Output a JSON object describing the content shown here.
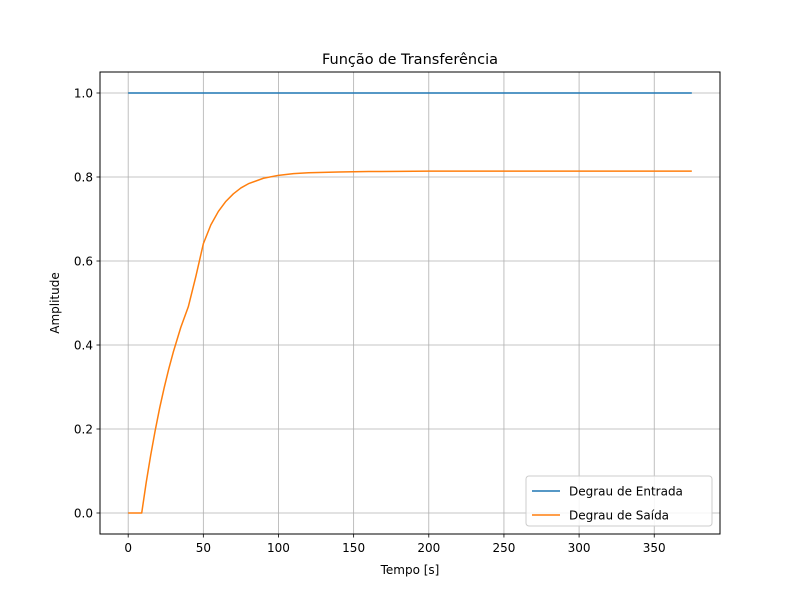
{
  "chart_data": {
    "type": "line",
    "title": "Função de Transferência",
    "xlabel": "Tempo [s]",
    "ylabel": "Amplitude",
    "xlim": [
      -18.75,
      393.75
    ],
    "ylim": [
      -0.05,
      1.05
    ],
    "xticks": [
      0,
      50,
      100,
      150,
      200,
      250,
      300,
      350
    ],
    "yticks": [
      0.0,
      0.2,
      0.4,
      0.6,
      0.8,
      1.0
    ],
    "xtick_labels": [
      "0",
      "50",
      "100",
      "150",
      "200",
      "250",
      "300",
      "350"
    ],
    "ytick_labels": [
      "0.0",
      "0.2",
      "0.4",
      "0.6",
      "0.8",
      "1.0"
    ],
    "grid": true,
    "legend_position": "lower-right",
    "series": [
      {
        "name": "Degrau de Entrada",
        "color": "#1f77b4",
        "x": [
          0,
          375
        ],
        "y": [
          1.0,
          1.0
        ]
      },
      {
        "name": "Degrau de Saída",
        "color": "#ff7f0e",
        "x": [
          0,
          9,
          12,
          15,
          18,
          21,
          24,
          27,
          30,
          35,
          40,
          45,
          50,
          55,
          60,
          65,
          70,
          75,
          80,
          90,
          100,
          110,
          120,
          130,
          140,
          150,
          160,
          180,
          200,
          250,
          300,
          350,
          375
        ],
        "y": [
          0.0,
          0.0,
          0.073,
          0.138,
          0.197,
          0.251,
          0.299,
          0.343,
          0.383,
          0.442,
          0.491,
          0.563,
          0.641,
          0.686,
          0.718,
          0.742,
          0.76,
          0.774,
          0.784,
          0.797,
          0.804,
          0.808,
          0.81,
          0.811,
          0.812,
          0.8125,
          0.813,
          0.8135,
          0.814,
          0.814,
          0.814,
          0.814,
          0.814
        ]
      }
    ]
  }
}
